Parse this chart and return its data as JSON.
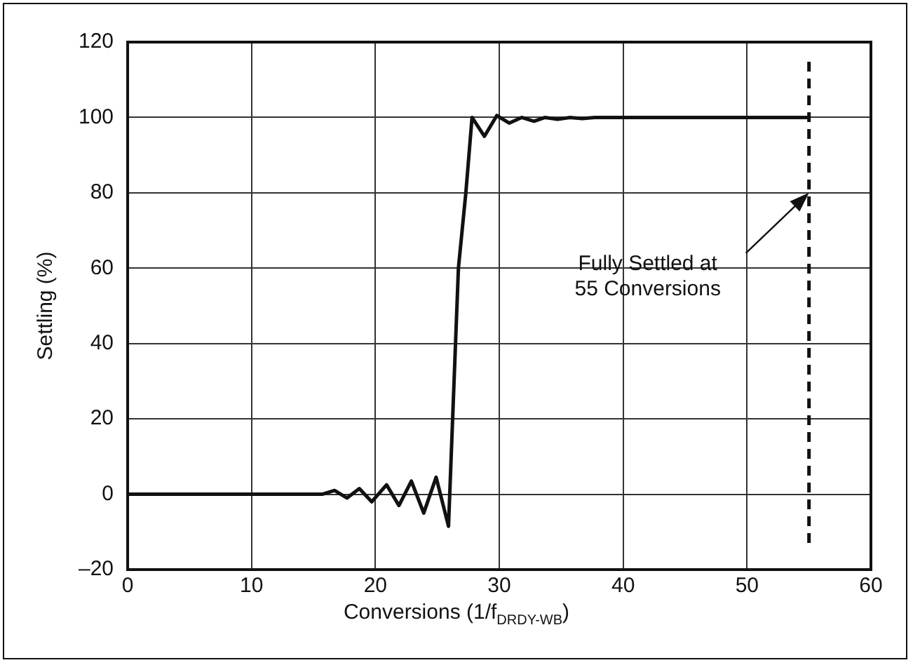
{
  "chart_data": {
    "type": "line",
    "xlabel": "Conversions (1/f$_{DRDY-WB}$)",
    "ylabel": "Settling (%)",
    "series": [
      {
        "color": "#111111",
        "x": [
          0,
          15.7,
          16.7,
          17.7,
          18.7,
          19.7,
          20.9,
          21.9,
          22.9,
          23.9,
          24.9,
          25.9,
          26.7,
          27.3,
          27.8,
          28.8,
          29.8,
          30.8,
          31.8,
          32.8,
          33.7,
          34.7,
          35.7,
          36.7,
          37.7,
          55
        ],
        "values": [
          0,
          0,
          1,
          -1,
          1.5,
          -2,
          2.5,
          -3,
          3.5,
          -5,
          4.5,
          -8.5,
          60,
          80,
          100,
          95,
          100.5,
          98.5,
          100,
          99,
          100,
          99.5,
          100,
          99.7,
          100,
          100
        ]
      }
    ],
    "xlim": [
      0,
      60
    ],
    "xticks": [
      0,
      10,
      20,
      30,
      40,
      50,
      60
    ],
    "ylim": [
      -20,
      120
    ],
    "yticks": [
      {
        "value": -20,
        "label": "–20"
      },
      0,
      20,
      40,
      60,
      80,
      100,
      120
    ],
    "grid": true,
    "legend": false,
    "marker": "none",
    "line_style": "solid",
    "ref_lines": [
      {
        "axis": "x",
        "value": 55,
        "line_style": "dashed",
        "color": "#111111"
      }
    ],
    "annotations": [
      {
        "text": "Fully Settled at\n55 Conversions",
        "x": 55,
        "y": 80
      }
    ]
  }
}
